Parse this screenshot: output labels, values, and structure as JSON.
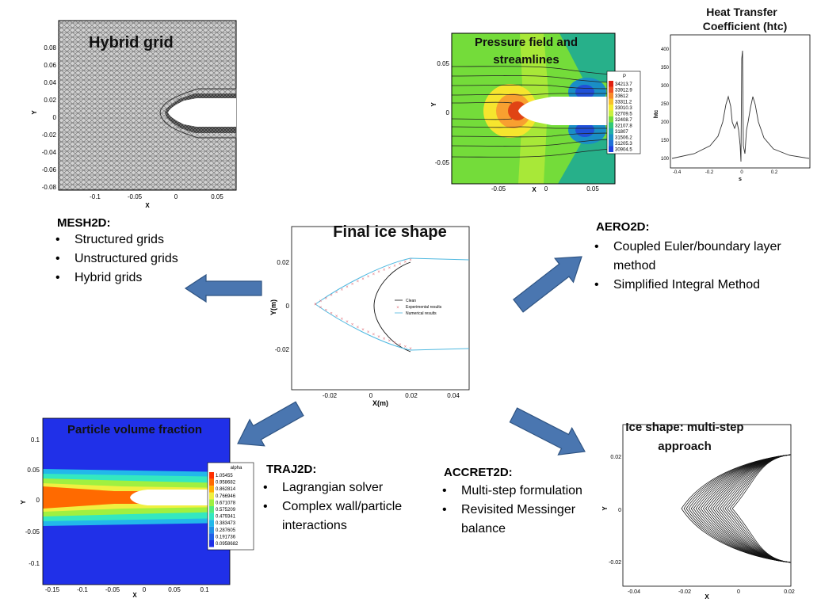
{
  "center": {
    "title": "Final ice shape",
    "ylabel": "Y(m)",
    "xlabel": "X(m)",
    "xticks": [
      "-0.02",
      "0",
      "0.02",
      "0.04"
    ],
    "yticks": [
      "0.02",
      "0",
      "-0.02"
    ],
    "legend": [
      "Clean",
      "Experimental results",
      "Numerical results"
    ]
  },
  "mesh": {
    "title": "Hybrid grid",
    "xlabel": "X",
    "ylabel": "Y",
    "yticks": [
      "0.08",
      "0.06",
      "0.04",
      "0.02",
      "0",
      "-0.02",
      "-0.04",
      "-0.06",
      "-0.08"
    ],
    "xticks": [
      "-0.1",
      "-0.05",
      "0",
      "0.05"
    ]
  },
  "pressure": {
    "title_line1": "Pressure field and",
    "title_line2": "streamlines",
    "xlabel": "X",
    "ylabel": "Y",
    "yticks": [
      "0.05",
      "0",
      "-0.05"
    ],
    "xticks": [
      "-0.05",
      "0",
      "0.05"
    ],
    "legend_title": "P",
    "legend_values": [
      "34213.7",
      "33912.9",
      "33612",
      "33311.2",
      "33010.3",
      "32709.5",
      "32408.7",
      "32107.8",
      "31807",
      "31506.2",
      "31205.3",
      "30904.5"
    ]
  },
  "htc": {
    "title_line1": "Heat Transfer",
    "title_line2": "Coefficient (htc)",
    "ylabel": "htc",
    "xlabel": "s",
    "yticks": [
      "400",
      "350",
      "300",
      "250",
      "200",
      "150",
      "100"
    ],
    "xticks": [
      "-0.4",
      "-0.2",
      "0",
      "0.2"
    ]
  },
  "particle": {
    "title": "Particle volume fraction",
    "xlabel": "X",
    "ylabel": "Y",
    "yticks": [
      "0.1",
      "0.05",
      "0",
      "-0.05",
      "-0.1"
    ],
    "xticks": [
      "-0.15",
      "-0.1",
      "-0.05",
      "0",
      "0.05",
      "0.1"
    ],
    "legend_title": "alpha",
    "legend_values": [
      "1.05455",
      "0.958682",
      "0.862814",
      "0.766946",
      "0.671078",
      "0.575209",
      "0.479341",
      "0.383473",
      "0.287605",
      "0.191736",
      "0.0958682"
    ]
  },
  "iceshape": {
    "title_line1": "Ice shape: multi-step",
    "title_line2": "approach",
    "xlabel": "X",
    "ylabel": "Y",
    "yticks": [
      "0.02",
      "0",
      "-0.02"
    ],
    "xticks": [
      "-0.04",
      "-0.02",
      "0",
      "0.02"
    ]
  },
  "modules": {
    "mesh2d": {
      "title": "MESH2D:",
      "items": [
        "Structured grids",
        "Unstructured grids",
        "Hybrid grids"
      ]
    },
    "aero2d": {
      "title": "AERO2D:",
      "items": [
        "Coupled Euler/boundary layer method",
        "Simplified Integral Method"
      ]
    },
    "traj2d": {
      "title": "TRAJ2D:",
      "items": [
        "Lagrangian solver",
        "Complex wall/particle interactions"
      ]
    },
    "accret2d": {
      "title": "ACCRET2D:",
      "items": [
        "Multi-step formulation",
        "Revisited Messinger balance"
      ]
    }
  },
  "colors": {
    "arrow_fill": "#4a76b0",
    "arrow_stroke": "#2f5483"
  }
}
